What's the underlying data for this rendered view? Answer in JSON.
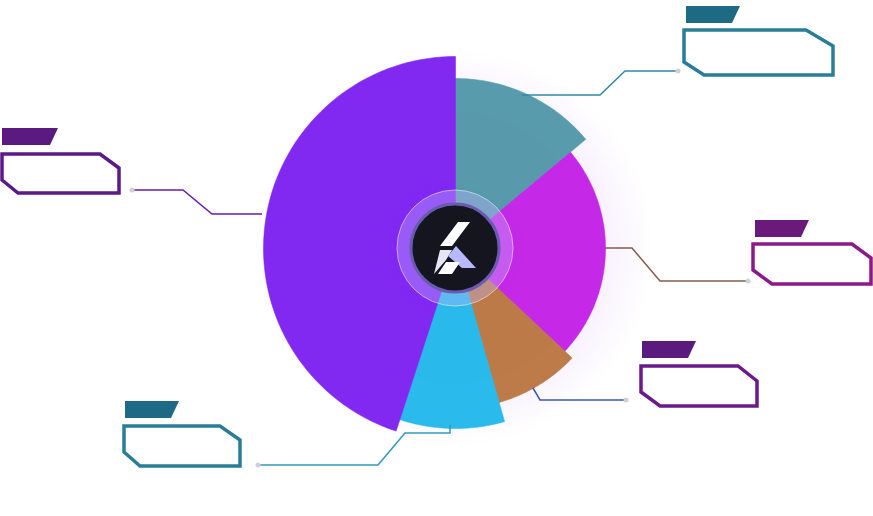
{
  "chart_data": {
    "type": "pie",
    "values": [
      13.9,
      23.1,
      8.6,
      9.4,
      45
    ],
    "radii": [
      170,
      150,
      160,
      180,
      192
    ],
    "colors": [
      "#4f96a8",
      "#c21ee6",
      "#b8743e",
      "#1fb6ea",
      "#7a1ef0"
    ],
    "tick_labels": false
  }
}
